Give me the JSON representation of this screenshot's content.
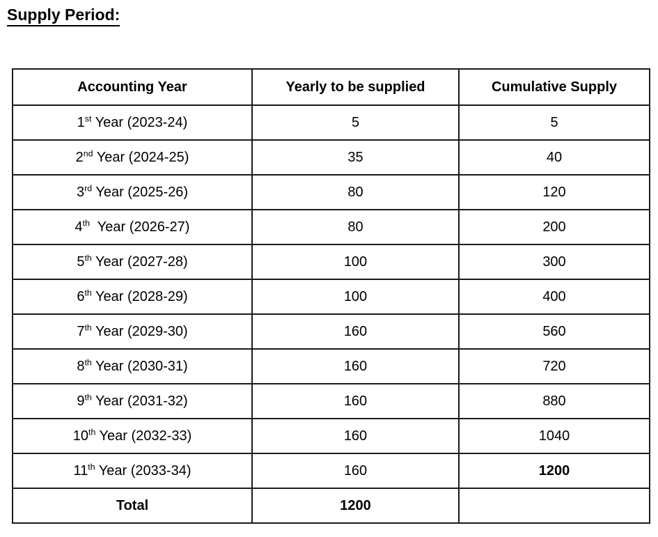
{
  "page": {
    "title": "Supply Period:"
  },
  "colors": {
    "text": "#000000",
    "border": "#1a1a1a",
    "background": "#ffffff"
  },
  "table": {
    "headers": [
      "Accounting Year",
      "Yearly to be supplied",
      "Cumulative Supply"
    ],
    "rows": [
      {
        "ordinal": "1",
        "suffix": "st",
        "rest": " Year (2023-24)",
        "yearly": "5",
        "cumulative": "5",
        "cumulative_bold": false
      },
      {
        "ordinal": "2",
        "suffix": "nd",
        "rest": " Year (2024-25)",
        "yearly": "35",
        "cumulative": "40",
        "cumulative_bold": false
      },
      {
        "ordinal": "3",
        "suffix": "rd",
        "rest": " Year (2025-26)",
        "yearly": "80",
        "cumulative": "120",
        "cumulative_bold": false
      },
      {
        "ordinal": "4",
        "suffix": "th",
        "rest": "  Year (2026-27)",
        "yearly": "80",
        "cumulative": "200",
        "cumulative_bold": false
      },
      {
        "ordinal": "5",
        "suffix": "th",
        "rest": " Year (2027-28)",
        "yearly": "100",
        "cumulative": "300",
        "cumulative_bold": false
      },
      {
        "ordinal": "6",
        "suffix": "th",
        "rest": " Year (2028-29)",
        "yearly": "100",
        "cumulative": "400",
        "cumulative_bold": false
      },
      {
        "ordinal": "7",
        "suffix": "th",
        "rest": " Year (2029-30)",
        "yearly": "160",
        "cumulative": "560",
        "cumulative_bold": false
      },
      {
        "ordinal": "8",
        "suffix": "th",
        "rest": " Year (2030-31)",
        "yearly": "160",
        "cumulative": "720",
        "cumulative_bold": false
      },
      {
        "ordinal": "9",
        "suffix": "th",
        "rest": " Year (2031-32)",
        "yearly": "160",
        "cumulative": "880",
        "cumulative_bold": false
      },
      {
        "ordinal": "10",
        "suffix": "th",
        "rest": " Year (2032-33)",
        "yearly": "160",
        "cumulative": "1040",
        "cumulative_bold": false
      },
      {
        "ordinal": "11",
        "suffix": "th",
        "rest": " Year (2033-34)",
        "yearly": "160",
        "cumulative": "1200",
        "cumulative_bold": true
      }
    ],
    "total": {
      "label": "Total",
      "yearly": "1200",
      "cumulative": ""
    }
  }
}
